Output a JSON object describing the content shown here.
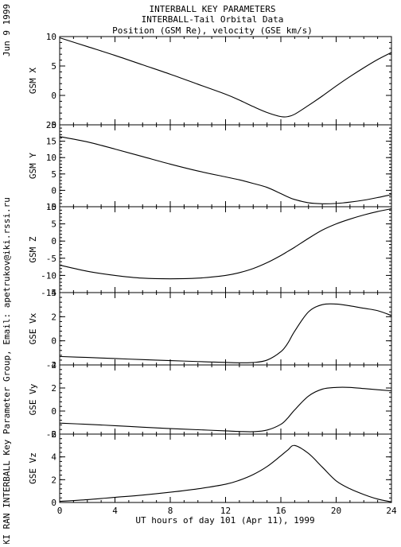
{
  "header": {
    "title_line1": "INTERBALL KEY PARAMETERS",
    "title_line2": "INTERBALL-Tail Orbital Data",
    "title_line3": "Position (GSM Re), velocity (GSE km/s)",
    "date_label": "Jun  9 1999",
    "credit": "IKI RAN INTERBALL Key Parameter Group, Email: apetrukov@iki.rssi.ru"
  },
  "chart_data": {
    "type": "line",
    "title": "INTERBALL-Tail Orbital Data",
    "xlabel": "UT hours of day 101 (Apr 11), 1999",
    "xlim": [
      0,
      24
    ],
    "xticks": [
      0,
      4,
      8,
      12,
      16,
      20,
      24
    ],
    "x": [
      0,
      2,
      4,
      6,
      8,
      10,
      12,
      13,
      14,
      15,
      16,
      16.5,
      17,
      18,
      19,
      20,
      21,
      22,
      23,
      24
    ],
    "panels": [
      {
        "ylabel": "GSM X",
        "ylim": [
          -5,
          10
        ],
        "yticks": [
          -5,
          0,
          5,
          10
        ],
        "values": [
          9.8,
          8.3,
          6.8,
          5.2,
          3.6,
          1.9,
          0.2,
          -0.8,
          -1.9,
          -2.9,
          -3.6,
          -3.6,
          -3.2,
          -1.7,
          -0.1,
          1.6,
          3.2,
          4.7,
          6.1,
          7.3
        ]
      },
      {
        "ylabel": "GSM Y",
        "ylim": [
          -5,
          20
        ],
        "yticks": [
          -5,
          0,
          5,
          10,
          15,
          20
        ],
        "values": [
          16.4,
          14.8,
          12.6,
          10.3,
          8.0,
          5.9,
          4.1,
          3.2,
          2.1,
          0.9,
          -1.0,
          -2.0,
          -2.8,
          -3.8,
          -4.1,
          -4.0,
          -3.6,
          -3.0,
          -2.2,
          -1.3
        ]
      },
      {
        "ylabel": "GSM Z",
        "ylim": [
          -15,
          10
        ],
        "yticks": [
          -15,
          -10,
          -5,
          0,
          5,
          10
        ],
        "values": [
          -7.0,
          -8.8,
          -10.0,
          -10.8,
          -11.0,
          -10.8,
          -10.0,
          -9.2,
          -8.0,
          -6.3,
          -4.2,
          -3.0,
          -1.8,
          0.8,
          3.2,
          5.0,
          6.4,
          7.6,
          8.6,
          9.4
        ]
      },
      {
        "ylabel": "GSE Vx",
        "ylim": [
          -2,
          4
        ],
        "yticks": [
          -2,
          0,
          2,
          4
        ],
        "values": [
          -1.3,
          -1.38,
          -1.47,
          -1.56,
          -1.64,
          -1.72,
          -1.79,
          -1.82,
          -1.8,
          -1.6,
          -0.9,
          -0.2,
          0.8,
          2.4,
          3.0,
          3.05,
          2.9,
          2.7,
          2.5,
          2.1
        ]
      },
      {
        "ylabel": "GSE Vy",
        "ylim": [
          -2,
          4
        ],
        "yticks": [
          -2,
          0,
          2,
          4
        ],
        "values": [
          -1.05,
          -1.15,
          -1.27,
          -1.4,
          -1.52,
          -1.62,
          -1.72,
          -1.77,
          -1.79,
          -1.65,
          -1.15,
          -0.6,
          0.1,
          1.3,
          1.9,
          2.05,
          2.05,
          1.95,
          1.85,
          1.75
        ]
      },
      {
        "ylabel": "GSE Vz",
        "ylim": [
          0,
          6
        ],
        "yticks": [
          0,
          2,
          4,
          6
        ],
        "values": [
          0.1,
          0.25,
          0.45,
          0.65,
          0.9,
          1.2,
          1.6,
          1.95,
          2.45,
          3.15,
          4.1,
          4.6,
          5.0,
          4.3,
          3.1,
          1.9,
          1.2,
          0.7,
          0.3,
          0.05
        ]
      }
    ]
  }
}
